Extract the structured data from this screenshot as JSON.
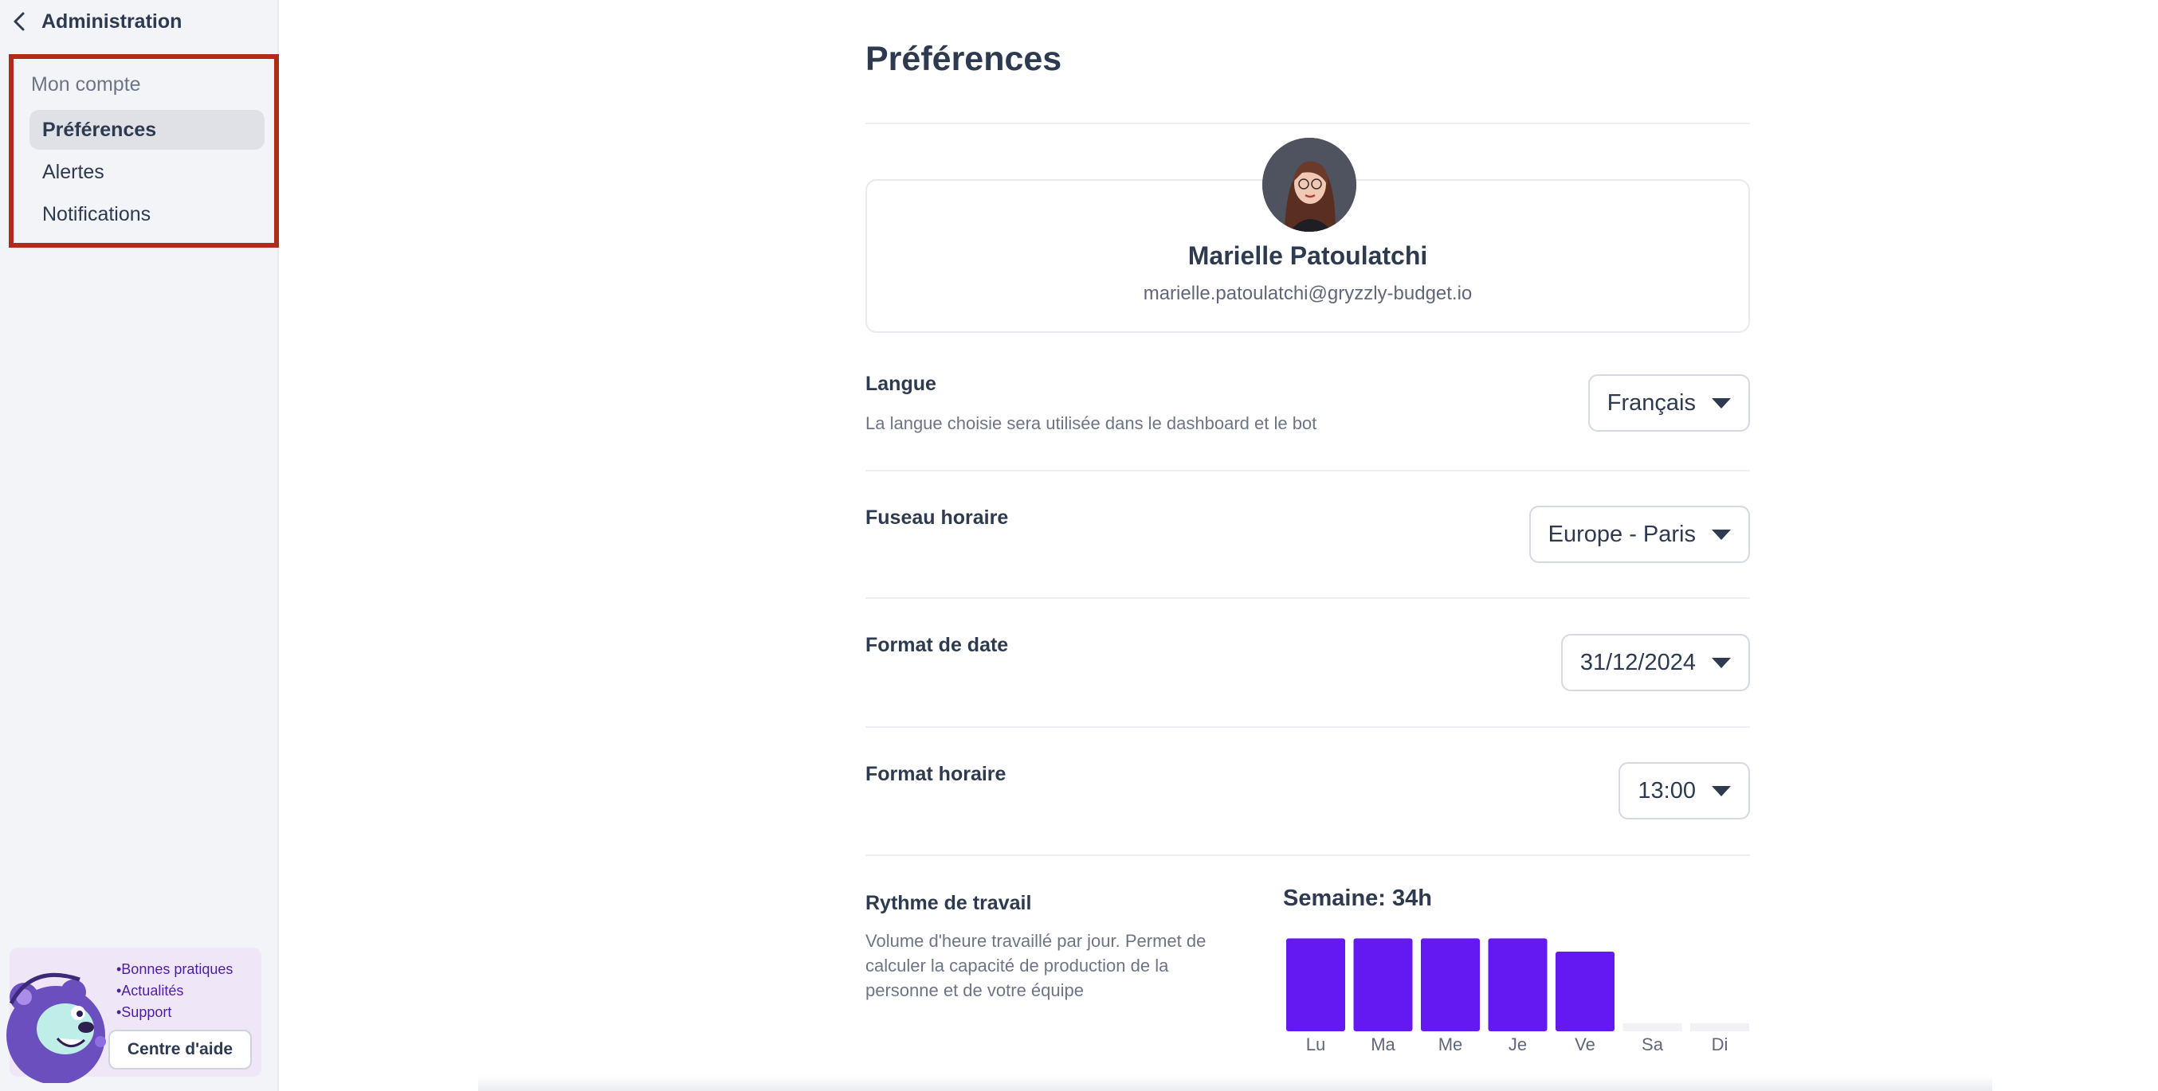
{
  "sidebar": {
    "back_label": "Administration",
    "section_label": "Mon compte",
    "items": [
      {
        "label": "Préférences",
        "active": true
      },
      {
        "label": "Alertes",
        "active": false
      },
      {
        "label": "Notifications",
        "active": false
      }
    ],
    "help": {
      "links": [
        "•Bonnes pratiques",
        "•Actualités",
        "•Support"
      ],
      "button_label": "Centre d'aide"
    }
  },
  "main": {
    "title": "Préférences",
    "profile": {
      "name": "Marielle Patoulatchi",
      "email": "marielle.patoulatchi@gryzzly-budget.io"
    },
    "language": {
      "title": "Langue",
      "description": "La langue choisie sera utilisée dans le dashboard et le bot",
      "value": "Français"
    },
    "timezone": {
      "title": "Fuseau horaire",
      "value": "Europe - Paris"
    },
    "date_format": {
      "title": "Format de date",
      "value": "31/12/2024"
    },
    "time_format": {
      "title": "Format horaire",
      "value": "13:00"
    },
    "work_rhythm": {
      "title": "Rythme de travail",
      "description_lines": [
        "Volume d'heure travaillé par jour. Permet de",
        "calculer la capacité de production de la",
        "personne et de votre équipe"
      ],
      "week_total": "Semaine: 34h"
    }
  },
  "colors": {
    "accent": "#6418f2",
    "highlight_border": "#b22a1c",
    "empty_bar": "#f1f2f5"
  },
  "chart_data": {
    "type": "bar",
    "categories": [
      "Lu",
      "Ma",
      "Me",
      "Je",
      "Ve",
      "Sa",
      "Di"
    ],
    "values": [
      7,
      7,
      7,
      7,
      6,
      0,
      0
    ],
    "ylim": [
      0,
      7.5
    ],
    "grid": false
  }
}
